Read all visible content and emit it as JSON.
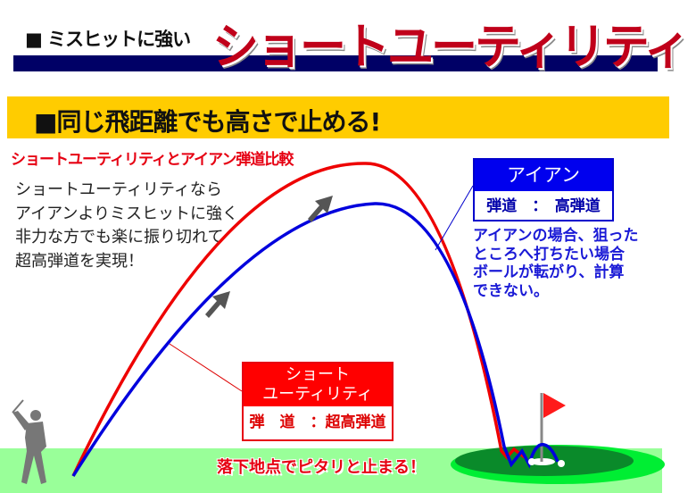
{
  "header": {
    "subtitle": "■ ミスヒットに強い",
    "title": "ショートユーティリティ"
  },
  "banner": {
    "text": "■同じ飛距離でも高さで止める!"
  },
  "comparison_title": "ショートユーティリティとアイアン弾道比較",
  "description": [
    "ショートユーティリティなら",
    "アイアンよりミスヒットに強く",
    "非力な方でも楽に振り切れて",
    "超高弾道を実現！"
  ],
  "iron": {
    "label": "アイアン",
    "trajectory": "弾道　：　高弾道",
    "note": [
      "アイアンの場合、狙った",
      "ところへ打ちたい場合",
      "ボールが転がり、計算",
      "できない。"
    ],
    "color": "#0000ee"
  },
  "utility": {
    "label_line1": "ショート",
    "label_line2": "ユーティリティ",
    "trajectory": "弾　道　：超高弾道",
    "color": "#ff0000"
  },
  "landing_text": "落下地点でピタリと止まる！",
  "colors": {
    "navy": "#000066",
    "yellow": "#ffcc00",
    "ground": "#99ff99",
    "green": "#00cc33"
  }
}
